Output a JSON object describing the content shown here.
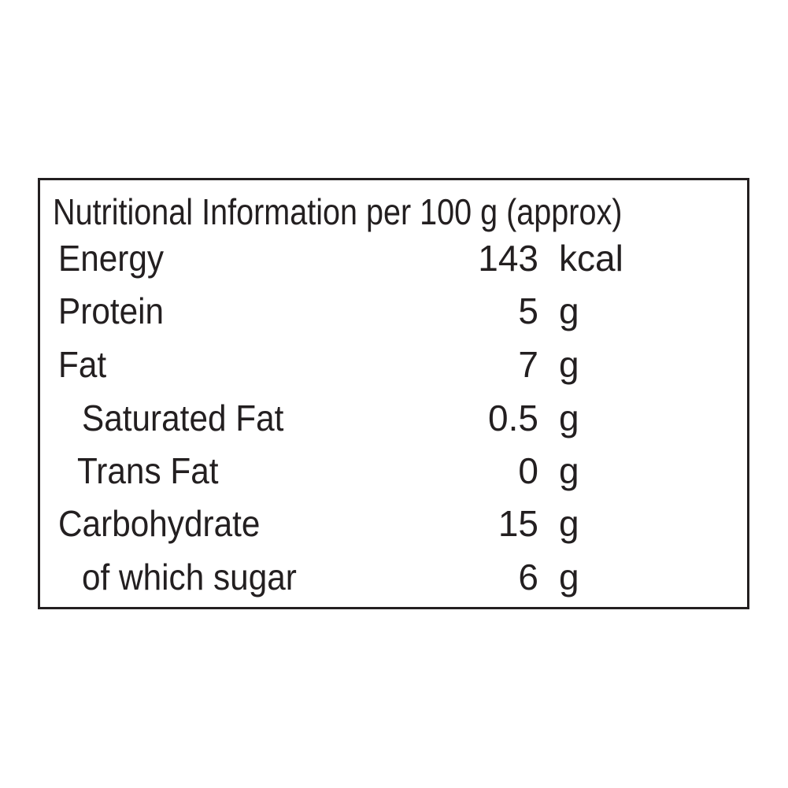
{
  "title": "Nutritional Information per 100 g (approx)",
  "rows": [
    {
      "label": "Energy",
      "value": "143",
      "unit": "kcal"
    },
    {
      "label": "Protein",
      "value": "5",
      "unit": "g"
    },
    {
      "label": "Fat",
      "value": "7",
      "unit": "g"
    },
    {
      "label": "Saturated Fat",
      "value": "0.5",
      "unit": "g"
    },
    {
      "label": "Trans Fat",
      "value": "0",
      "unit": "g"
    },
    {
      "label": "Carbohydrate",
      "value": "15",
      "unit": "g"
    },
    {
      "label": "of which sugar",
      "value": "6",
      "unit": "g"
    }
  ]
}
